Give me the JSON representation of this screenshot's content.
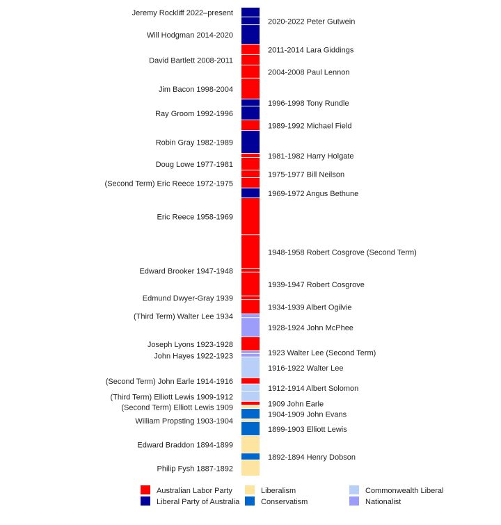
{
  "chart_data": {
    "type": "bar",
    "orientation": "vertical-stacked-timeline",
    "title": "",
    "parties": {
      "labor": {
        "name": "Australian Labor Party",
        "color": "#ff0000"
      },
      "liberal": {
        "name": "Liberal Party of Australia",
        "color": "#000099"
      },
      "liberalism": {
        "name": "Liberalism",
        "color": "#fde4a0"
      },
      "conservatism": {
        "name": "Conservatism",
        "color": "#0066cc"
      },
      "commonwealth_liberal": {
        "name": "Commonwealth Liberal",
        "color": "#b8cff8"
      },
      "nationalist": {
        "name": "Nationalist",
        "color": "#9c9cfb"
      }
    },
    "legend_order": [
      "labor",
      "liberal",
      "liberalism",
      "conservatism",
      "commonwealth_liberal",
      "nationalist"
    ],
    "legend_placement": "bottom",
    "segments": [
      {
        "label": "Jeremy Rockliff 2022–present",
        "party": "liberal",
        "start": 2021.2,
        "end": 2024.0
      },
      {
        "label": "2020-2022 Peter Gutwein",
        "party": "liberal",
        "start": 2018.9,
        "end": 2021.2
      },
      {
        "label": "Will Hodgman 2014-2020",
        "party": "liberal",
        "start": 2013.2,
        "end": 2018.9
      },
      {
        "label": "2011-2014 Lara Giddings",
        "party": "labor",
        "start": 2010.2,
        "end": 2013.2
      },
      {
        "label": "David Bartlett 2008-2011",
        "party": "labor",
        "start": 2007.1,
        "end": 2010.2
      },
      {
        "label": "2004-2008 Paul Lennon",
        "party": "labor",
        "start": 2003.3,
        "end": 2007.1
      },
      {
        "label": "Jim Bacon 1998-2004",
        "party": "labor",
        "start": 1997.2,
        "end": 2003.3
      },
      {
        "label": "1996-1998 Tony Rundle",
        "party": "liberal",
        "start": 1995.1,
        "end": 1997.2
      },
      {
        "label": "Ray Groom 1992-1996",
        "party": "liberal",
        "start": 1991.1,
        "end": 1995.1
      },
      {
        "label": "1989-1992 Michael Field",
        "party": "labor",
        "start": 1988.0,
        "end": 1991.1
      },
      {
        "label": "Robin Gray 1982-1989",
        "party": "liberal",
        "start": 1981.3,
        "end": 1988.0
      },
      {
        "label": "1981-1982 Harry Holgate",
        "party": "labor",
        "start": 1980.1,
        "end": 1981.3
      },
      {
        "label": "Doug Lowe 1977-1981",
        "party": "labor",
        "start": 1976.4,
        "end": 1980.1
      },
      {
        "label": "1975-1977 Bill Neilson",
        "party": "labor",
        "start": 1974.2,
        "end": 1976.4
      },
      {
        "label": "(Second Term) Eric Reece 1972-1975",
        "party": "labor",
        "start": 1971.2,
        "end": 1974.2
      },
      {
        "label": "1969-1972 Angus Bethune",
        "party": "liberal",
        "start": 1968.3,
        "end": 1971.2
      },
      {
        "label": "Eric Reece 1958-1969",
        "party": "labor",
        "start": 1957.5,
        "end": 1968.3
      },
      {
        "label": "1948-1958 Robert Cosgrove (Second Term)",
        "party": "labor",
        "start": 1947.6,
        "end": 1957.5
      },
      {
        "label": "Edward Brooker 1947-1948",
        "party": "labor",
        "start": 1946.6,
        "end": 1947.6
      },
      {
        "label": "1939-1947 Robert Cosgrove",
        "party": "labor",
        "start": 1939.6,
        "end": 1946.6
      },
      {
        "label": "Edmund Dwyer-Gray 1939",
        "party": "labor",
        "start": 1938.6,
        "end": 1939.6
      },
      {
        "label": "1934-1939 Albert Ogilvie",
        "party": "labor",
        "start": 1934.4,
        "end": 1938.6
      },
      {
        "label": "(Third Term) Walter Lee 1934",
        "party": "nationalist",
        "start": 1933.3,
        "end": 1934.4
      },
      {
        "label": "1928-1924 John McPhee",
        "party": "nationalist",
        "start": 1927.7,
        "end": 1933.3
      },
      {
        "label": "Joseph Lyons 1923-1928",
        "party": "labor",
        "start": 1923.6,
        "end": 1927.7
      },
      {
        "label": "1923 Walter Lee (Second Term)",
        "party": "nationalist",
        "start": 1922.8,
        "end": 1923.6
      },
      {
        "label": "John Hayes 1922-1923",
        "party": "nationalist",
        "start": 1921.8,
        "end": 1922.8
      },
      {
        "label": "1916-1922 Walter Lee",
        "party": "commonwealth_liberal",
        "start": 1915.7,
        "end": 1921.8
      },
      {
        "label": "(Second Term) John Earle 1914-1916",
        "party": "labor",
        "start": 1913.9,
        "end": 1915.7
      },
      {
        "label": "1912-1914 Albert Solomon",
        "party": "commonwealth_liberal",
        "start": 1911.8,
        "end": 1913.9
      },
      {
        "label": "(Third Term) Elliott Lewis 1909-1912",
        "party": "commonwealth_liberal",
        "start": 1908.8,
        "end": 1911.8
      },
      {
        "label": "1909 John Earle",
        "party": "labor",
        "start": 1907.7,
        "end": 1908.8
      },
      {
        "label": "(Second Term) Elliott Lewis 1909",
        "party": "liberalism",
        "start": 1906.7,
        "end": 1907.7
      },
      {
        "label": "1904-1909 John Evans",
        "party": "conservatism",
        "start": 1903.7,
        "end": 1906.7
      },
      {
        "label": "William Propsting 1903-1904",
        "party": "liberalism",
        "start": 1902.9,
        "end": 1903.7
      },
      {
        "label": "1899-1903 Elliott Lewis",
        "party": "conservatism",
        "start": 1898.8,
        "end": 1902.9
      },
      {
        "label": "Edward Braddon 1894-1899",
        "party": "liberalism",
        "start": 1893.7,
        "end": 1898.8
      },
      {
        "label": "1892-1894 Henry Dobson",
        "party": "conservatism",
        "start": 1891.7,
        "end": 1893.7
      },
      {
        "label": "Philip Fysh 1887-1892",
        "party": "liberalism",
        "start": 1887.0,
        "end": 1891.7
      }
    ]
  }
}
